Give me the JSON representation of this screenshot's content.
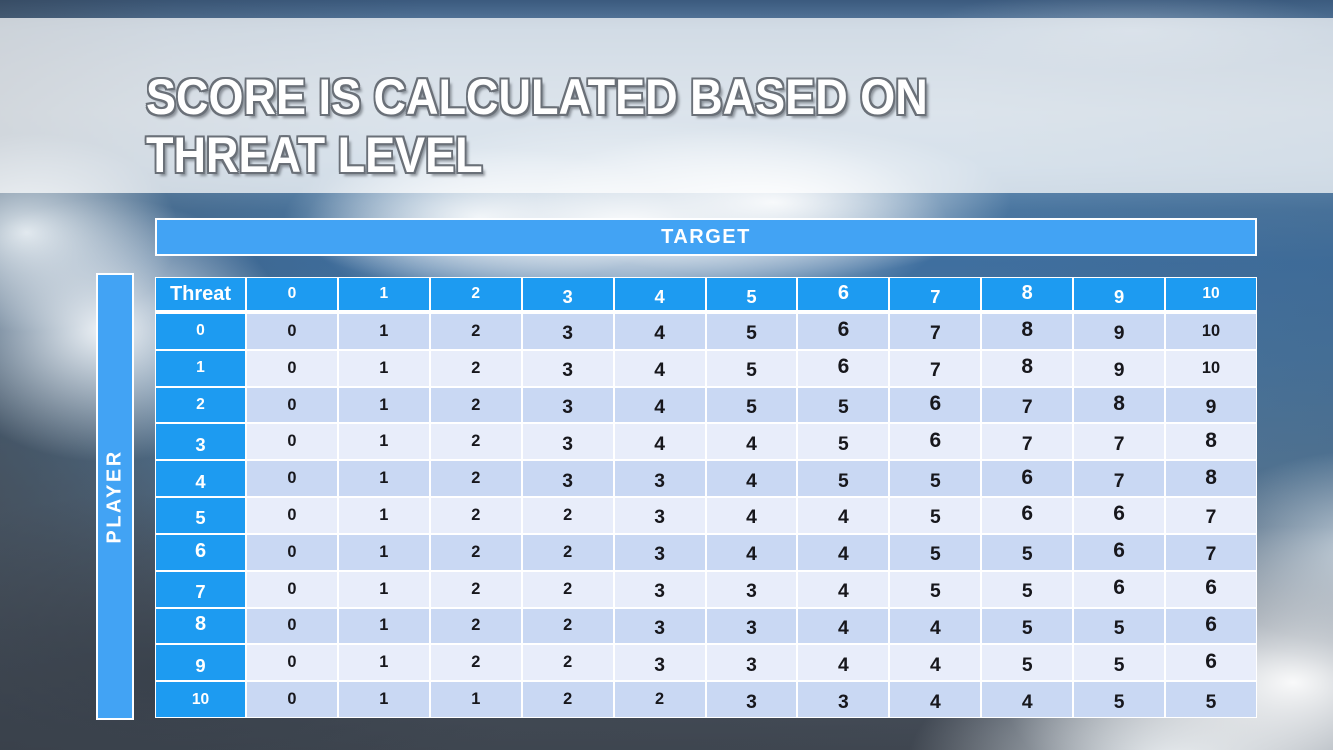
{
  "slide": {
    "title_line1": "SCORE IS CALCULATED BASED ON",
    "title_line2": "THREAT LEVEL"
  },
  "matrix": {
    "target_label": "TARGET",
    "player_label": "PLAYER",
    "corner_label": "Threat",
    "column_headers": [
      "0",
      "1",
      "2",
      "3",
      "4",
      "5",
      "6",
      "7",
      "8",
      "9",
      "10"
    ],
    "rows": [
      {
        "threat": "0",
        "values": [
          "0",
          "1",
          "2",
          "3",
          "4",
          "5",
          "6",
          "7",
          "8",
          "9",
          "10"
        ]
      },
      {
        "threat": "1",
        "values": [
          "0",
          "1",
          "2",
          "3",
          "4",
          "5",
          "6",
          "7",
          "8",
          "9",
          "10"
        ]
      },
      {
        "threat": "2",
        "values": [
          "0",
          "1",
          "2",
          "3",
          "4",
          "5",
          "5",
          "6",
          "7",
          "8",
          "9"
        ]
      },
      {
        "threat": "3",
        "values": [
          "0",
          "1",
          "2",
          "3",
          "4",
          "4",
          "5",
          "6",
          "7",
          "7",
          "8"
        ]
      },
      {
        "threat": "4",
        "values": [
          "0",
          "1",
          "2",
          "3",
          "3",
          "4",
          "5",
          "5",
          "6",
          "7",
          "8"
        ]
      },
      {
        "threat": "5",
        "values": [
          "0",
          "1",
          "2",
          "2",
          "3",
          "4",
          "4",
          "5",
          "6",
          "6",
          "7"
        ]
      },
      {
        "threat": "6",
        "values": [
          "0",
          "1",
          "2",
          "2",
          "3",
          "4",
          "4",
          "5",
          "5",
          "6",
          "7"
        ]
      },
      {
        "threat": "7",
        "values": [
          "0",
          "1",
          "2",
          "2",
          "3",
          "3",
          "4",
          "5",
          "5",
          "6",
          "6"
        ]
      },
      {
        "threat": "8",
        "values": [
          "0",
          "1",
          "2",
          "2",
          "3",
          "3",
          "4",
          "4",
          "5",
          "5",
          "6"
        ]
      },
      {
        "threat": "9",
        "values": [
          "0",
          "1",
          "2",
          "2",
          "3",
          "3",
          "4",
          "4",
          "5",
          "5",
          "6"
        ]
      },
      {
        "threat": "10",
        "values": [
          "0",
          "1",
          "1",
          "2",
          "2",
          "3",
          "3",
          "4",
          "4",
          "5",
          "5"
        ]
      }
    ]
  },
  "colors": {
    "header_blue": "#1d9bf1",
    "axis_bar_blue": "#42a3f4",
    "row_even_bg": "#c9d8f3",
    "row_odd_bg": "#e8edfa",
    "cell_text": "#17171c",
    "title_text": "#ffffff",
    "title_outline": "#6a7078",
    "title_band_overlay": "rgba(255,255,255,0.72)"
  }
}
